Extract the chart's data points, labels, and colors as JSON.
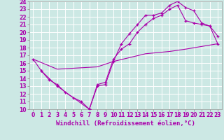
{
  "xlabel": "Windchill (Refroidissement éolien,°C)",
  "bg_color": "#cce8e4",
  "line_color": "#aa00aa",
  "grid_color": "#ffffff",
  "xlim": [
    -0.5,
    23.5
  ],
  "ylim": [
    10,
    24
  ],
  "xticks": [
    0,
    1,
    2,
    3,
    4,
    5,
    6,
    7,
    8,
    9,
    10,
    11,
    12,
    13,
    14,
    15,
    16,
    17,
    18,
    19,
    20,
    21,
    22,
    23
  ],
  "yticks": [
    10,
    11,
    12,
    13,
    14,
    15,
    16,
    17,
    18,
    19,
    20,
    21,
    22,
    23,
    24
  ],
  "line1_x": [
    0,
    1,
    2,
    3,
    4,
    5,
    6,
    7,
    8,
    9,
    10,
    11,
    12,
    13,
    14,
    15,
    16,
    17,
    18,
    19,
    20,
    21,
    22,
    23
  ],
  "line1_y": [
    16.5,
    15.0,
    13.8,
    13.2,
    12.2,
    11.5,
    11.0,
    10.0,
    13.0,
    13.2,
    16.2,
    18.5,
    19.8,
    21.0,
    22.2,
    22.2,
    22.5,
    23.5,
    24.0,
    23.2,
    22.8,
    21.2,
    20.8,
    19.5
  ],
  "line2_x": [
    1,
    3,
    7,
    8,
    9,
    10,
    11,
    12,
    13,
    14,
    15,
    16,
    17,
    18,
    19,
    20,
    21,
    22,
    23
  ],
  "line2_y": [
    15.0,
    13.0,
    10.0,
    13.2,
    13.5,
    16.5,
    17.8,
    18.5,
    20.0,
    21.0,
    21.8,
    22.2,
    23.0,
    23.5,
    21.5,
    21.2,
    21.0,
    20.8,
    18.5
  ],
  "line3_x": [
    0,
    3,
    8,
    10,
    14,
    17,
    19,
    23
  ],
  "line3_y": [
    16.5,
    15.2,
    15.5,
    16.2,
    17.2,
    17.5,
    17.8,
    18.5
  ],
  "fontsize": 6,
  "tick_fontsize": 5.5,
  "xlabel_fontsize": 6.5
}
